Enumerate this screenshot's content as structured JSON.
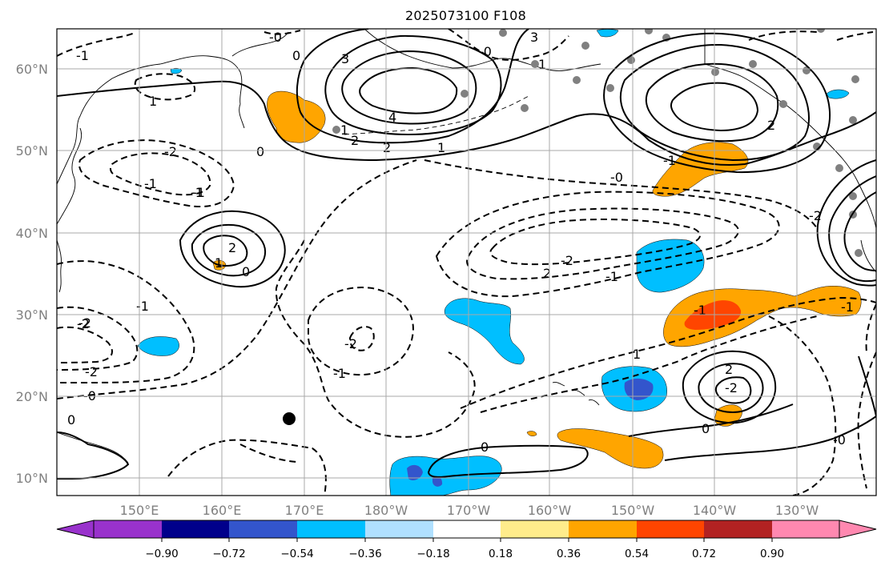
{
  "title": "2025073100 F108",
  "lat_labels": [
    "60°N",
    "50°N",
    "40°N",
    "30°N",
    "20°N",
    "10°N"
  ],
  "lon_labels": [
    "150°E",
    "160°E",
    "170°E",
    "180°W",
    "170°W",
    "160°W",
    "150°W",
    "140°W",
    "130°W"
  ],
  "colorbar": {
    "colors": [
      "#9932cc",
      "#00008b",
      "#3355cc",
      "#00bfff",
      "#b0e0ff",
      "#ffffff",
      "#ffec8b",
      "#ffa500",
      "#ff4500",
      "#b22222",
      "#ff88b0"
    ],
    "tick_labels": [
      "−0.90",
      "−0.72",
      "−0.54",
      "−0.36",
      "−0.18",
      "0.18",
      "0.36",
      "0.54",
      "0.72",
      "0.90"
    ]
  },
  "contour_labels": [
    "-0",
    "3",
    "4",
    "2",
    "2",
    "1",
    "1",
    "0",
    "-2",
    "-1",
    "2",
    "1",
    "0",
    "-1",
    "-2",
    "-2",
    "-1",
    "-2",
    "-0",
    "0",
    "-2",
    "-1",
    "-0",
    "-1",
    "2",
    "1",
    "2",
    "0",
    "0",
    "-2",
    "-2",
    "-1",
    "1",
    "-1",
    "-2",
    "-0",
    "1",
    "-1",
    "0",
    "-0",
    "-1",
    "3",
    "2",
    "-1"
  ],
  "colors": {
    "frame": "#000000",
    "grid": "#a9a9a9",
    "axis_text": "#808080"
  }
}
